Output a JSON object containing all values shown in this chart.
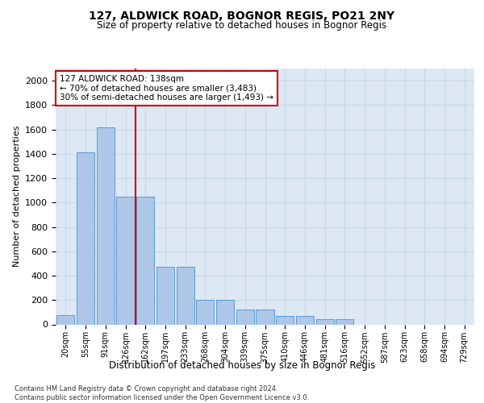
{
  "title1": "127, ALDWICK ROAD, BOGNOR REGIS, PO21 2NY",
  "title2": "Size of property relative to detached houses in Bognor Regis",
  "xlabel": "Distribution of detached houses by size in Bognor Regis",
  "ylabel": "Number of detached properties",
  "categories": [
    "20sqm",
    "55sqm",
    "91sqm",
    "126sqm",
    "162sqm",
    "197sqm",
    "233sqm",
    "268sqm",
    "304sqm",
    "339sqm",
    "375sqm",
    "410sqm",
    "446sqm",
    "481sqm",
    "516sqm",
    "552sqm",
    "587sqm",
    "623sqm",
    "658sqm",
    "694sqm",
    "729sqm"
  ],
  "values": [
    75,
    1410,
    1620,
    1050,
    1050,
    470,
    470,
    200,
    200,
    120,
    120,
    70,
    70,
    40,
    40,
    0,
    0,
    0,
    0,
    0,
    0
  ],
  "bar_color": "#aec6e8",
  "bar_edge_color": "#5b9bd5",
  "grid_color": "#c8d8e8",
  "bg_color": "#dde8f4",
  "annotation_text": "127 ALDWICK ROAD: 138sqm\n← 70% of detached houses are smaller (3,483)\n30% of semi-detached houses are larger (1,493) →",
  "annotation_box_color": "#ffffff",
  "annotation_box_edge": "#cc0000",
  "footnote": "Contains HM Land Registry data © Crown copyright and database right 2024.\nContains public sector information licensed under the Open Government Licence v3.0.",
  "ylim": [
    0,
    2100
  ],
  "yticks": [
    0,
    200,
    400,
    600,
    800,
    1000,
    1200,
    1400,
    1600,
    1800,
    2000
  ]
}
